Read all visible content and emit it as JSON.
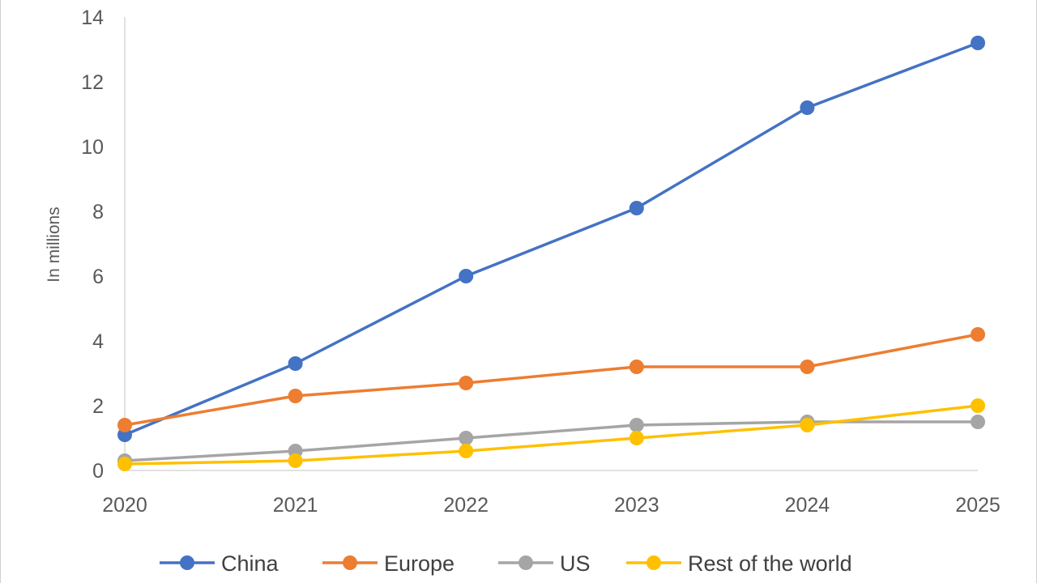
{
  "chart_data": {
    "type": "line",
    "title": "",
    "xlabel": "",
    "ylabel": "In millions",
    "categories": [
      "2020",
      "2021",
      "2022",
      "2023",
      "2024",
      "2025"
    ],
    "ylim": [
      0,
      14
    ],
    "yticks": [
      0,
      2,
      4,
      6,
      8,
      10,
      12,
      14
    ],
    "grid": false,
    "legend_position": "bottom",
    "series": [
      {
        "name": "China",
        "color": "#4472c4",
        "values": [
          1.1,
          3.3,
          6.0,
          8.1,
          11.2,
          13.2
        ]
      },
      {
        "name": "Europe",
        "color": "#ed7d31",
        "values": [
          1.4,
          2.3,
          2.7,
          3.2,
          3.2,
          4.2
        ]
      },
      {
        "name": "US",
        "color": "#a5a5a5",
        "values": [
          0.3,
          0.6,
          1.0,
          1.4,
          1.5,
          1.5
        ]
      },
      {
        "name": "Rest of the world",
        "color": "#ffc000",
        "values": [
          0.2,
          0.3,
          0.6,
          1.0,
          1.4,
          2.0
        ]
      }
    ]
  }
}
